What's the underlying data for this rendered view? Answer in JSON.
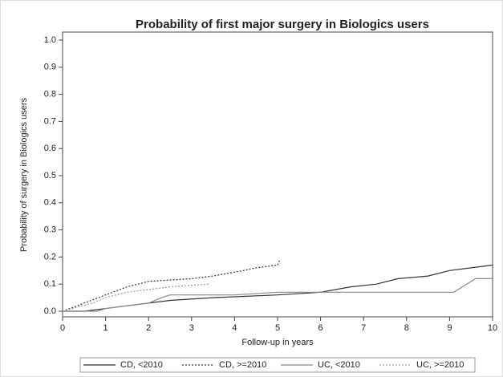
{
  "chart_data": {
    "type": "line",
    "title": "Probability of first major surgery in Biologics users",
    "x_label": "Follow-up in years",
    "y_label": "Probability of surgery in Biologics users",
    "xlim": [
      0,
      10
    ],
    "xticks": [
      0,
      1,
      2,
      3,
      4,
      5,
      6,
      7,
      8,
      9,
      10
    ],
    "ylim": [
      0,
      1
    ],
    "yticks": [
      {
        "value": 0,
        "label": "0.0"
      },
      0.1,
      0.2,
      0.3,
      0.4,
      0.5,
      0.6,
      0.7,
      0.8,
      0.9,
      {
        "value": 1,
        "label": "1.0"
      }
    ],
    "series": [
      {
        "name": "CD, <2010",
        "color": "#333333",
        "dash": "solid",
        "x": [
          0,
          0.5,
          1.5,
          2.5,
          3.5,
          5,
          6,
          6.7,
          7.3,
          7.8,
          8.5,
          9,
          9.5,
          10
        ],
        "values": [
          0,
          0,
          0.02,
          0.04,
          0.05,
          0.06,
          0.07,
          0.09,
          0.1,
          0.12,
          0.13,
          0.15,
          0.16,
          0.17
        ]
      },
      {
        "name": "CD, >=2010",
        "color": "#333333",
        "dash": "dotted",
        "x": [
          0,
          0.5,
          1,
          1.5,
          2,
          3,
          3.5,
          4.2,
          4.5,
          5,
          5.05
        ],
        "values": [
          0,
          0.03,
          0.06,
          0.09,
          0.11,
          0.12,
          0.13,
          0.15,
          0.16,
          0.17,
          0.19
        ]
      },
      {
        "name": "UC, <2010",
        "color": "#888888",
        "dash": "solid",
        "x": [
          0,
          0.8,
          1,
          1.5,
          2,
          2.3,
          2.5,
          4,
          5,
          6,
          9.1,
          9.3,
          9.6,
          10
        ],
        "values": [
          0,
          0,
          0.01,
          0.02,
          0.03,
          0.05,
          0.06,
          0.06,
          0.07,
          0.07,
          0.07,
          0.09,
          0.12,
          0.12
        ]
      },
      {
        "name": "UC, >=2010",
        "color": "#999999",
        "dash": "dotted",
        "x": [
          0,
          0.7,
          1,
          1.5,
          2,
          2.5,
          3.4
        ],
        "values": [
          0,
          0.03,
          0.05,
          0.07,
          0.08,
          0.09,
          0.1
        ]
      }
    ]
  }
}
